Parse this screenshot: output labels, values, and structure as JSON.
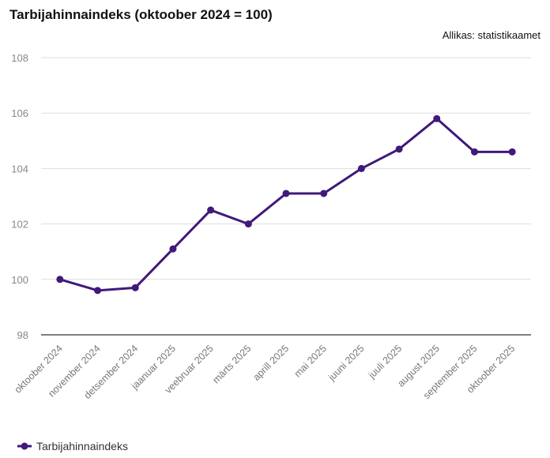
{
  "chart_data": {
    "type": "line",
    "title": "Tarbijahinnaindeks (oktoober 2024 = 100)",
    "source": "Allikas: statistikaamet",
    "categories": [
      "oktoober 2024",
      "november 2024",
      "detsember 2024",
      "jaanuar 2025",
      "veebruar 2025",
      "märts 2025",
      "aprill 2025",
      "mai 2025",
      "juuni 2025",
      "juuli 2025",
      "august 2025",
      "september 2025",
      "oktoober 2025"
    ],
    "series": [
      {
        "name": "Tarbijahinnaindeks",
        "color": "#40197a",
        "values": [
          100.0,
          99.6,
          99.7,
          101.1,
          102.5,
          102.0,
          103.1,
          103.1,
          104.0,
          104.7,
          105.8,
          104.6,
          104.6
        ]
      }
    ],
    "ylim": [
      98,
      108
    ],
    "yticks": [
      98,
      100,
      102,
      104,
      106,
      108
    ],
    "grid": true
  }
}
